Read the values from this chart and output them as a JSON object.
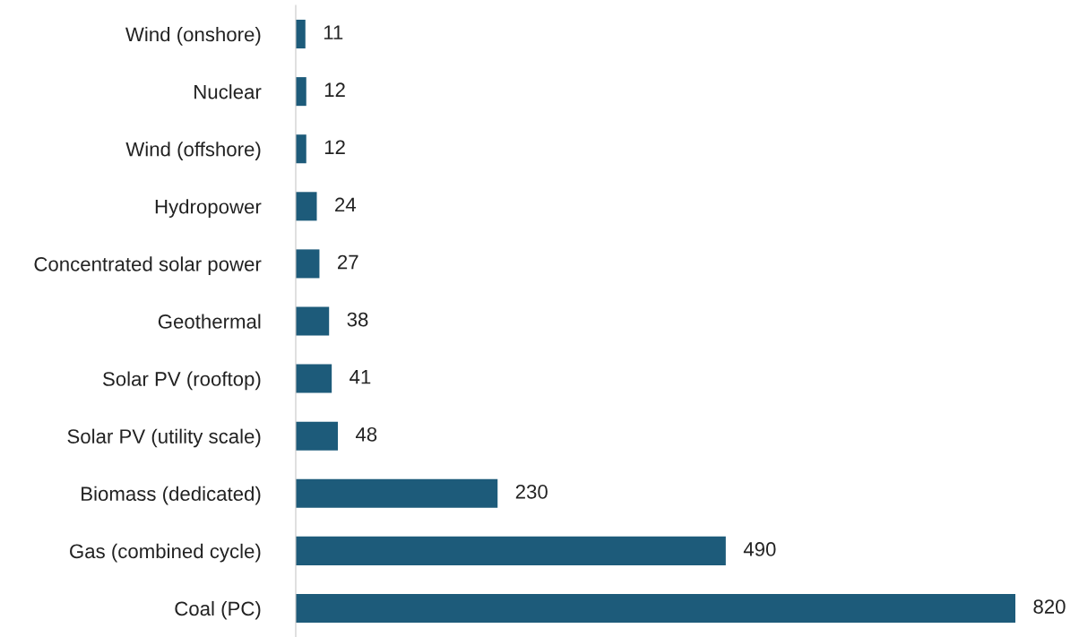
{
  "chart_data": {
    "type": "bar",
    "orientation": "horizontal",
    "categories": [
      "Wind (onshore)",
      "Nuclear",
      "Wind (offshore)",
      "Hydropower",
      "Concentrated solar power",
      "Geothermal",
      "Solar PV (rooftop)",
      "Solar PV (utility scale)",
      "Biomass (dedicated)",
      "Gas (combined cycle)",
      "Coal (PC)"
    ],
    "values": [
      11,
      12,
      12,
      24,
      27,
      38,
      41,
      48,
      230,
      490,
      820
    ],
    "color": "#1d5b7a",
    "data_labels": true,
    "grid": false,
    "legend": false,
    "tick_labels": "y"
  }
}
